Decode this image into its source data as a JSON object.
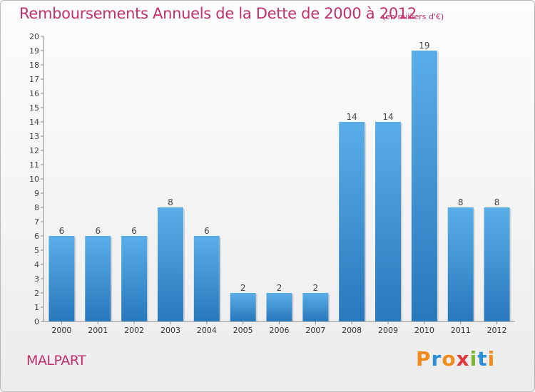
{
  "chart_data": {
    "type": "bar",
    "title": "Remboursements Annuels de la Dette de 2000 à 2012",
    "unit": "(en milliers d'€)",
    "categories": [
      "2000",
      "2001",
      "2002",
      "2003",
      "2004",
      "2005",
      "2006",
      "2007",
      "2008",
      "2009",
      "2010",
      "2011",
      "2012"
    ],
    "values": [
      6,
      6,
      6,
      8,
      6,
      2,
      2,
      2,
      14,
      14,
      19,
      8,
      8
    ],
    "data_labels": [
      "6",
      "6",
      "6",
      "8",
      "6",
      "2",
      "2",
      "2",
      "14",
      "14",
      "19",
      "8",
      "8"
    ],
    "y_ticks": [
      "0",
      "1",
      "2",
      "3",
      "4",
      "5",
      "6",
      "7",
      "8",
      "9",
      "10",
      "11",
      "12",
      "13",
      "14",
      "15",
      "16",
      "17",
      "18",
      "19",
      "20"
    ],
    "ylim": [
      0,
      20
    ],
    "grid": false,
    "legend": "none",
    "colors": {
      "bar_light": "#5aaee8",
      "bar_dark": "#2878bc",
      "text": "#c0306a"
    }
  },
  "commune": "MALPART",
  "logo": {
    "text": "Proxiti",
    "colors": [
      "#f08c1c",
      "#2a8fd6",
      "#f08c1c",
      "#e23a3a",
      "#7ab32e",
      "#2a8fd6",
      "#f08c1c"
    ]
  }
}
